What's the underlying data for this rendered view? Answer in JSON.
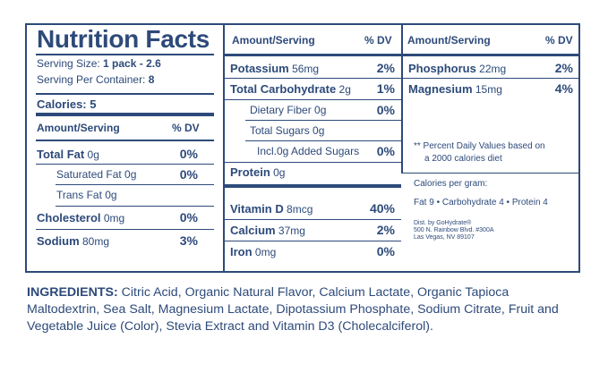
{
  "title": "Nutrition Facts",
  "serving": {
    "size_label": "Serving Size:",
    "size_value": "1 pack - 2.6",
    "per_container_label": "Serving Per Container:",
    "per_container_value": "8"
  },
  "calories": "Calories: 5",
  "headers": {
    "amount": "Amount/Serving",
    "dv": "% DV"
  },
  "col1": [
    {
      "name": "Total Fat",
      "amount": "0g",
      "dv": "0%",
      "bold": true
    },
    {
      "name": "Saturated Fat",
      "amount": "0g",
      "dv": "0%",
      "bold": false
    },
    {
      "name": "Trans Fat",
      "amount": "0g",
      "dv": "",
      "bold": false
    },
    {
      "name": "Cholesterol",
      "amount": "0mg",
      "dv": "0%",
      "bold": true
    },
    {
      "name": "Sodium",
      "amount": "80mg",
      "dv": "3%",
      "bold": true
    }
  ],
  "col2": [
    {
      "name": "Potassium",
      "amount": "56mg",
      "dv": "2%",
      "bold": true
    },
    {
      "name": "Total Carbohydrate",
      "amount": "2g",
      "dv": "1%",
      "bold": true
    },
    {
      "name": "Dietary Fiber",
      "amount": "0g",
      "dv": "0%",
      "bold": false
    },
    {
      "name": "Total Sugars",
      "amount": "0g",
      "dv": "",
      "bold": false
    },
    {
      "name": "Incl.0g Added Sugars",
      "amount": "",
      "dv": "0%",
      "bold": false
    },
    {
      "name": "Protein",
      "amount": "0g",
      "dv": "",
      "bold": true
    }
  ],
  "col2b": [
    {
      "name": "Vitamin D",
      "amount": "8mcg",
      "dv": "40%",
      "bold": true
    },
    {
      "name": "Calcium",
      "amount": "37mg",
      "dv": "2%",
      "bold": true
    },
    {
      "name": "Iron",
      "amount": "0mg",
      "dv": "0%",
      "bold": true
    }
  ],
  "col3": [
    {
      "name": "Phosphorus",
      "amount": "22mg",
      "dv": "2%",
      "bold": true
    },
    {
      "name": "Magnesium",
      "amount": "15mg",
      "dv": "4%",
      "bold": true
    }
  ],
  "footnote_line1": "** Percent Daily Values based on",
  "footnote_line2": "a 2000 calories diet",
  "cal_per_gram_label": "Calories per gram:",
  "cal_per_gram_values": "Fat 9 • Carbohydrate 4 • Protein 4",
  "dist": {
    "line1": "Dist. by GoHydrate®",
    "line2": "500 N. Rainbow Blvd. #300A",
    "line3": "Las Vegas, NV 89107"
  },
  "ingredients_label": "INGREDIENTS:",
  "ingredients_text": " Citric Acid, Organic Natural Flavor, Calcium Lactate, Organic Tapioca Maltodextrin, Sea Salt, Magnesium Lactate, Dipotassium Phosphate, Sodium Citrate, Fruit and Vegetable Juice (Color), Stevia Extract and Vitamin D3 (Cholecalciferol).",
  "colors": {
    "ink": "#2d4a7a"
  }
}
